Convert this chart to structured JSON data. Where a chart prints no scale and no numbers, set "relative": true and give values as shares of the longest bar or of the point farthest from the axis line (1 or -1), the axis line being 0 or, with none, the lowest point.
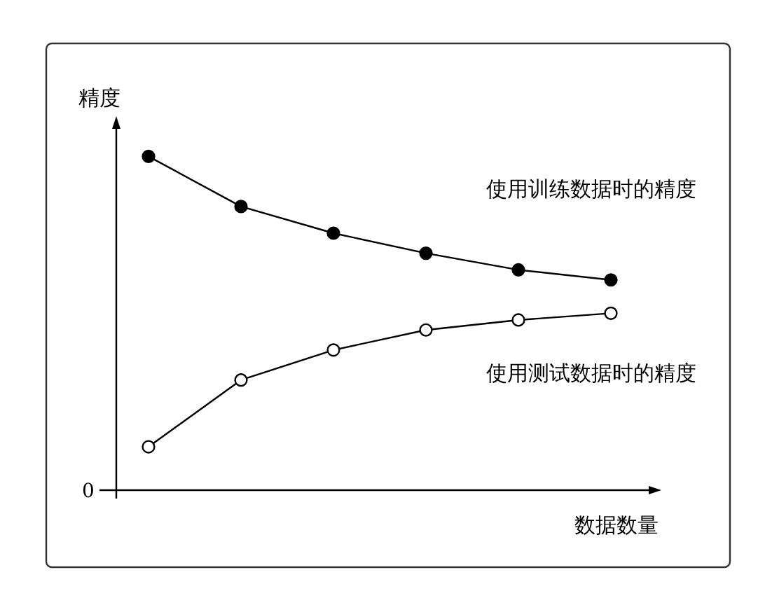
{
  "chart_data": {
    "type": "line",
    "relative": true,
    "ylabel": "精度",
    "xlabel": "数据数量",
    "categories": [
      null,
      null,
      null,
      null,
      null,
      null
    ],
    "series": [
      {
        "name": "使用训练数据时的精度",
        "color": "#000000",
        "values": [
          1,
          0.85,
          0.77,
          0.71,
          0.66,
          0.63
        ]
      },
      {
        "name": "使用测试数据时的精度",
        "color": "#000000",
        "values": [
          0.13,
          0.33,
          0.42,
          0.48,
          0.51,
          0.53
        ]
      }
    ],
    "annotations": [
      "0"
    ],
    "marker": "circle"
  }
}
